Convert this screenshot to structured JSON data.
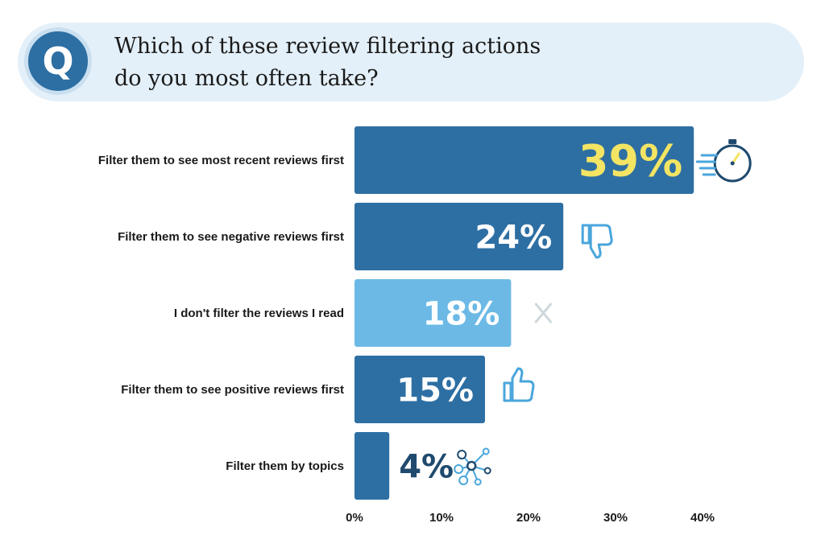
{
  "question": {
    "badge": "Q",
    "line1": "Which of these review filtering actions",
    "line2": "do you most often take?"
  },
  "colors": {
    "bar_dark": "#2e6fa3",
    "bar_light": "#6cb9e6",
    "banner": "#e4f0f9",
    "highlight_text": "#f3e463",
    "icon_blue": "#4aa6dc",
    "icon_navy": "#1f4a6e",
    "icon_gray": "#cfd8dd"
  },
  "chart_data": {
    "type": "bar",
    "orientation": "horizontal",
    "categories": [
      "Filter them to see most recent reviews first",
      "Filter them to see negative reviews first",
      "I don't filter the reviews I read",
      "Filter them to see positive reviews first",
      "Filter them by topics"
    ],
    "values": [
      39,
      24,
      18,
      15,
      4
    ],
    "value_labels": [
      "39%",
      "24%",
      "18%",
      "15%",
      "4%"
    ],
    "icons": [
      "stopwatch-icon",
      "thumbs-down-icon",
      "x-icon",
      "thumbs-up-icon",
      "network-icon"
    ],
    "bar_colors": [
      "#2e6fa3",
      "#2e6fa3",
      "#6cb9e6",
      "#2e6fa3",
      "#2e6fa3"
    ],
    "label_colors": [
      "#f3e463",
      "#ffffff",
      "#ffffff",
      "#ffffff",
      "#1f4a6e"
    ],
    "label_inside": [
      true,
      true,
      true,
      true,
      false
    ],
    "xticks": [
      "0%",
      "10%",
      "20%",
      "30%",
      "40%"
    ],
    "xlim": [
      0,
      40
    ],
    "grid": false,
    "legend": "none"
  }
}
